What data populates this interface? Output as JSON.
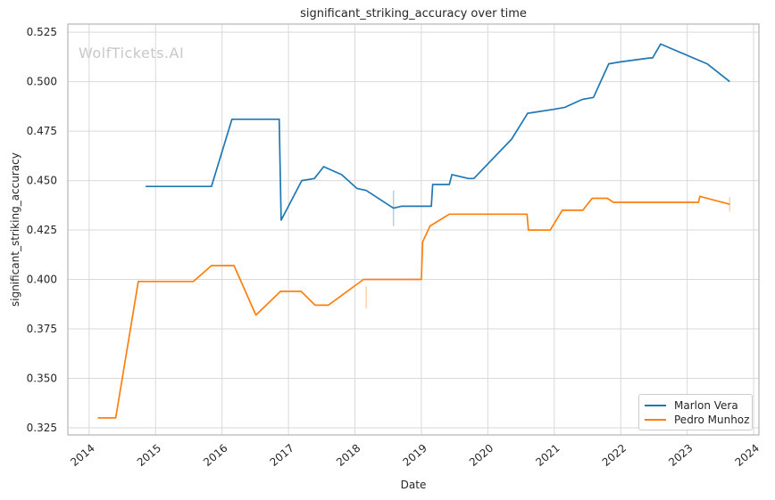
{
  "watermark": "WolfTickets.AI",
  "legend": {
    "items": [
      {
        "label": "Marlon Vera",
        "color": "#1f77b4"
      },
      {
        "label": "Pedro Munhoz",
        "color": "#ff7f0e"
      }
    ]
  },
  "chart_data": {
    "type": "line",
    "title": "significant_striking_accuracy over time",
    "xlabel": "Date",
    "ylabel": "significant_striking_accuracy",
    "grid": true,
    "legend_position": "lower right",
    "xlim": [
      2013.68,
      2024.08
    ],
    "ylim": [
      0.3214,
      0.5291
    ],
    "x_ticks": [
      2014,
      2015,
      2016,
      2017,
      2018,
      2019,
      2020,
      2021,
      2022,
      2023,
      2024
    ],
    "x_tick_labels": [
      "2014",
      "2015",
      "2016",
      "2017",
      "2018",
      "2019",
      "2020",
      "2021",
      "2022",
      "2023",
      "2024"
    ],
    "y_ticks": [
      0.325,
      0.35,
      0.375,
      0.4,
      0.425,
      0.45,
      0.475,
      0.5,
      0.525
    ],
    "y_tick_labels": [
      "0.325",
      "0.350",
      "0.375",
      "0.400",
      "0.425",
      "0.450",
      "0.475",
      "0.500",
      "0.525"
    ],
    "grid_color": "#d9d9d9",
    "spine_color": "#b5b5b5",
    "text_color": "#262626",
    "series": [
      {
        "name": "Marlon Vera",
        "color": "#1f77b4",
        "points": [
          [
            2014.85,
            0.447
          ],
          [
            2015.84,
            0.447
          ],
          [
            2016.15,
            0.481
          ],
          [
            2016.86,
            0.481
          ],
          [
            2016.89,
            0.43
          ],
          [
            2017.2,
            0.45
          ],
          [
            2017.39,
            0.451
          ],
          [
            2017.53,
            0.457
          ],
          [
            2017.8,
            0.453
          ],
          [
            2018.03,
            0.446
          ],
          [
            2018.17,
            0.445
          ],
          [
            2018.58,
            0.436
          ],
          [
            2018.7,
            0.437
          ],
          [
            2019.15,
            0.437
          ],
          [
            2019.17,
            0.448
          ],
          [
            2019.42,
            0.448
          ],
          [
            2019.46,
            0.453
          ],
          [
            2019.71,
            0.451
          ],
          [
            2019.79,
            0.451
          ],
          [
            2020.36,
            0.471
          ],
          [
            2020.6,
            0.484
          ],
          [
            2020.99,
            0.486
          ],
          [
            2021.16,
            0.487
          ],
          [
            2021.42,
            0.491
          ],
          [
            2021.59,
            0.492
          ],
          [
            2021.82,
            0.509
          ],
          [
            2022.0,
            0.51
          ],
          [
            2022.44,
            0.512
          ],
          [
            2022.48,
            0.512
          ],
          [
            2022.6,
            0.519
          ],
          [
            2023.23,
            0.51
          ],
          [
            2023.3,
            0.509
          ],
          [
            2023.64,
            0.5
          ]
        ]
      },
      {
        "name": "Pedro Munhoz",
        "color": "#ff7f0e",
        "points": [
          [
            2014.13,
            0.33
          ],
          [
            2014.4,
            0.33
          ],
          [
            2014.74,
            0.399
          ],
          [
            2015.57,
            0.399
          ],
          [
            2015.84,
            0.407
          ],
          [
            2016.18,
            0.407
          ],
          [
            2016.51,
            0.382
          ],
          [
            2016.88,
            0.394
          ],
          [
            2017.19,
            0.394
          ],
          [
            2017.4,
            0.387
          ],
          [
            2017.6,
            0.387
          ],
          [
            2018.13,
            0.4
          ],
          [
            2019.0,
            0.4
          ],
          [
            2019.02,
            0.419
          ],
          [
            2019.13,
            0.427
          ],
          [
            2019.42,
            0.433
          ],
          [
            2020.59,
            0.433
          ],
          [
            2020.61,
            0.425
          ],
          [
            2020.94,
            0.425
          ],
          [
            2021.12,
            0.435
          ],
          [
            2021.43,
            0.435
          ],
          [
            2021.57,
            0.441
          ],
          [
            2021.8,
            0.441
          ],
          [
            2021.89,
            0.439
          ],
          [
            2023.17,
            0.439
          ],
          [
            2023.19,
            0.442
          ],
          [
            2023.64,
            0.438
          ]
        ]
      }
    ],
    "event_markers": [
      {
        "series": "Pedro Munhoz",
        "x": 2018.17,
        "y": 0.391,
        "half_height": 0.0055
      },
      {
        "series": "Marlon Vera",
        "x": 2018.58,
        "y": 0.436,
        "half_height": 0.009
      },
      {
        "series": "Pedro Munhoz",
        "x": 2023.64,
        "y": 0.438,
        "half_height": 0.0036
      }
    ]
  }
}
